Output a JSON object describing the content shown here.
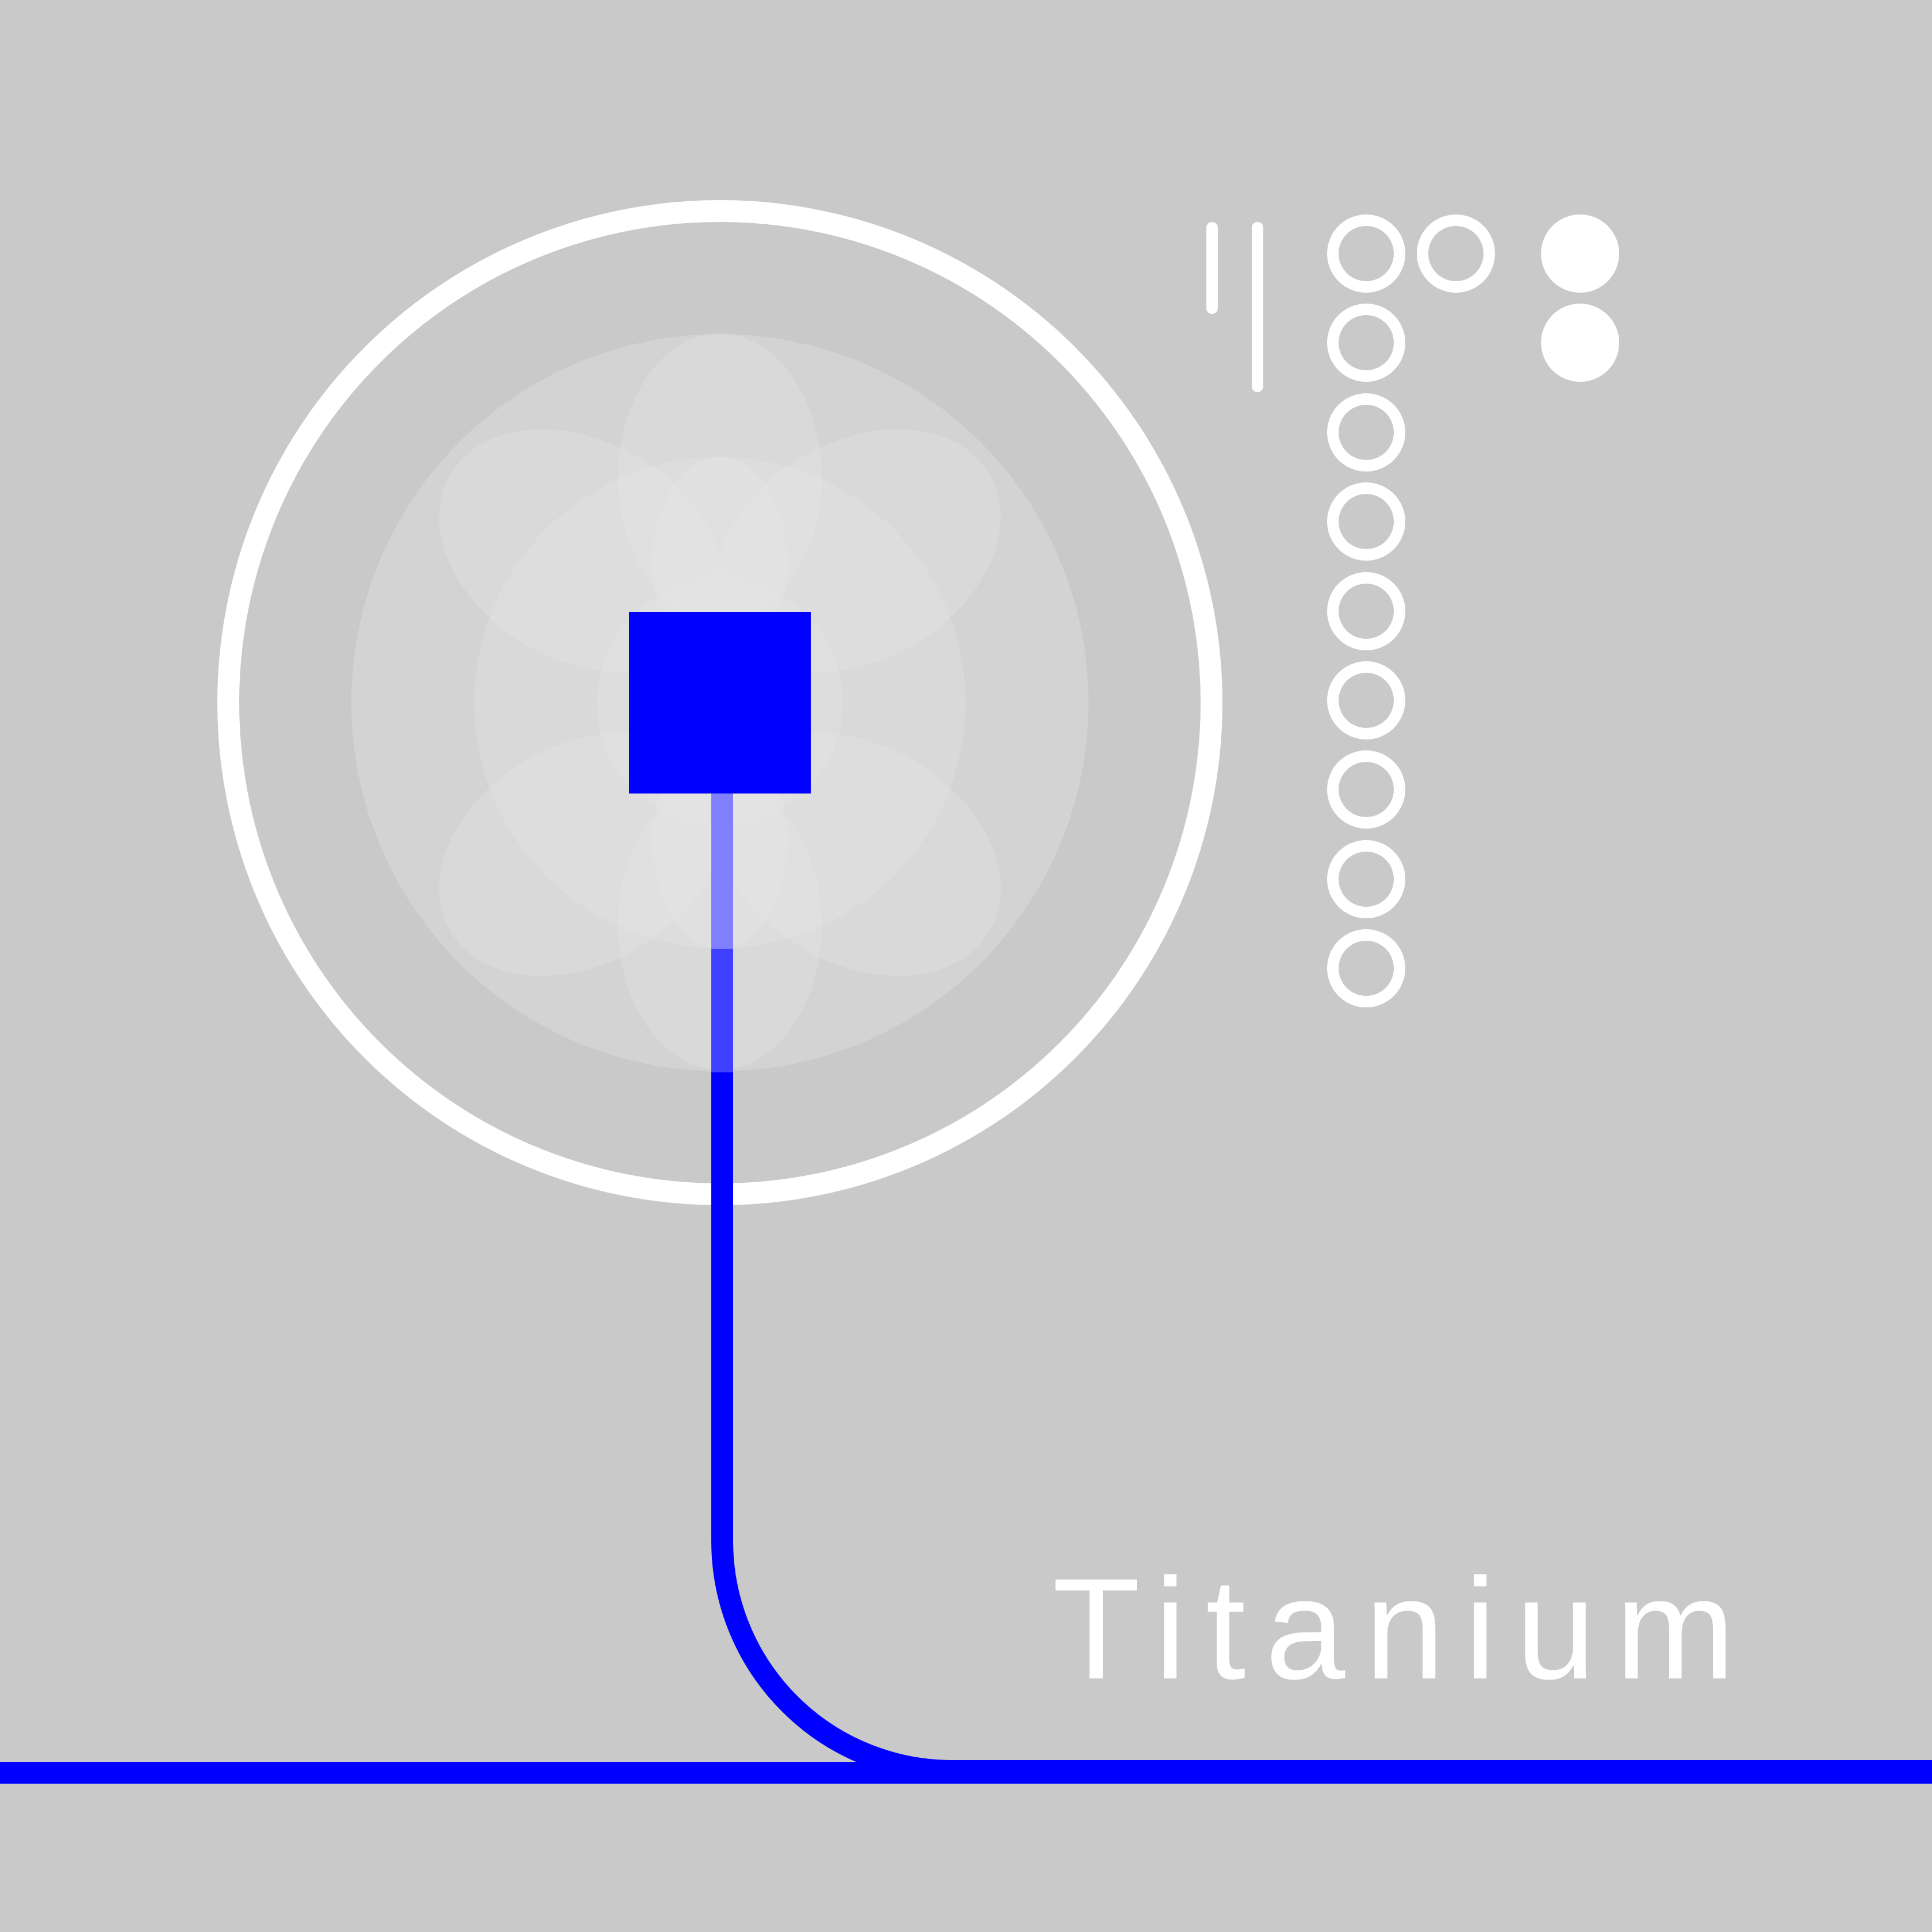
{
  "element": {
    "name": "Titanium"
  },
  "colors": {
    "background": "#c9c9c9",
    "accent": "#0000ff",
    "foreground": "#ffffff",
    "petal": "#e6e6e6"
  },
  "electron_shells": [
    {
      "shell": 1,
      "electrons": 2
    },
    {
      "shell": 2,
      "electrons": 8
    },
    {
      "shell": 3,
      "electrons": 10
    },
    {
      "shell": 4,
      "electrons": 2
    }
  ]
}
